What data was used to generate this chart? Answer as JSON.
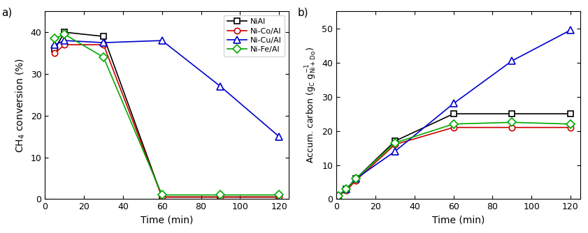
{
  "panel_a": {
    "title": "a)",
    "xlabel": "Time (min)",
    "ylabel": "CH₄ conversion (%)",
    "ylim": [
      0,
      45
    ],
    "xlim": [
      0,
      125
    ],
    "yticks": [
      0,
      10,
      20,
      30,
      40
    ],
    "xticks": [
      0,
      20,
      40,
      60,
      80,
      100,
      120
    ],
    "series": {
      "NiAl": {
        "x": [
          5,
          10,
          30,
          60,
          90,
          120
        ],
        "y": [
          36,
          40,
          39,
          0.5,
          0.5,
          0.5
        ],
        "color": "#000000",
        "marker": "s",
        "markersize": 6,
        "linestyle": "-"
      },
      "Ni-Co/Al": {
        "x": [
          5,
          10,
          30,
          60,
          90,
          120
        ],
        "y": [
          35,
          37,
          37,
          0.5,
          0.5,
          0.5
        ],
        "color": "#cc0000",
        "marker": "o",
        "markersize": 6,
        "linestyle": "-"
      },
      "Ni-Cu/Al": {
        "x": [
          5,
          10,
          30,
          60,
          90,
          120
        ],
        "y": [
          37,
          38,
          37.5,
          38,
          27,
          15
        ],
        "color": "#0000cc",
        "marker": "^",
        "markersize": 7,
        "linestyle": "-"
      },
      "Ni-Fe/Al": {
        "x": [
          5,
          10,
          30,
          60,
          90,
          120
        ],
        "y": [
          38.5,
          39.5,
          34,
          1,
          1,
          1
        ],
        "color": "#00aa00",
        "marker": "D",
        "markersize": 6,
        "linestyle": "-"
      }
    }
  },
  "panel_b": {
    "title": "b)",
    "xlabel": "Time (min)",
    "ylabel": "Accum. carbon (g_C g_Ni+Do ^-1)",
    "ylim": [
      0,
      55
    ],
    "xlim": [
      0,
      125
    ],
    "yticks": [
      0,
      10,
      20,
      30,
      40,
      50
    ],
    "xticks": [
      0,
      20,
      40,
      60,
      80,
      100,
      120
    ],
    "series": {
      "NiAl": {
        "x": [
          1,
          5,
          10,
          30,
          60,
          90,
          120
        ],
        "y": [
          1,
          3,
          6,
          17,
          25,
          25,
          25
        ],
        "color": "#000000",
        "marker": "s",
        "markersize": 6,
        "linestyle": "-"
      },
      "Ni-Co/Al": {
        "x": [
          1,
          5,
          10,
          30,
          60,
          90,
          120
        ],
        "y": [
          1,
          2.5,
          5.5,
          16,
          21,
          21,
          21
        ],
        "color": "#cc0000",
        "marker": "o",
        "markersize": 6,
        "linestyle": "-"
      },
      "Ni-Cu/Al": {
        "x": [
          1,
          5,
          10,
          30,
          60,
          90,
          120
        ],
        "y": [
          1,
          3,
          6,
          14,
          28,
          40.5,
          49.5
        ],
        "color": "#0000cc",
        "marker": "^",
        "markersize": 7,
        "linestyle": "-"
      },
      "Ni-Fe/Al": {
        "x": [
          1,
          5,
          10,
          30,
          60,
          90,
          120
        ],
        "y": [
          1,
          3,
          6,
          16.5,
          22,
          22.5,
          22
        ],
        "color": "#00aa00",
        "marker": "D",
        "markersize": 6,
        "linestyle": "-"
      }
    }
  },
  "legend_labels": [
    "NiAl",
    "Ni-Co/Al",
    "Ni-Cu/Al",
    "Ni-Fe/Al"
  ],
  "legend_colors": [
    "#000000",
    "#cc0000",
    "#0000cc",
    "#00aa00"
  ],
  "legend_markers": [
    "s",
    "o",
    "^",
    "D"
  ]
}
